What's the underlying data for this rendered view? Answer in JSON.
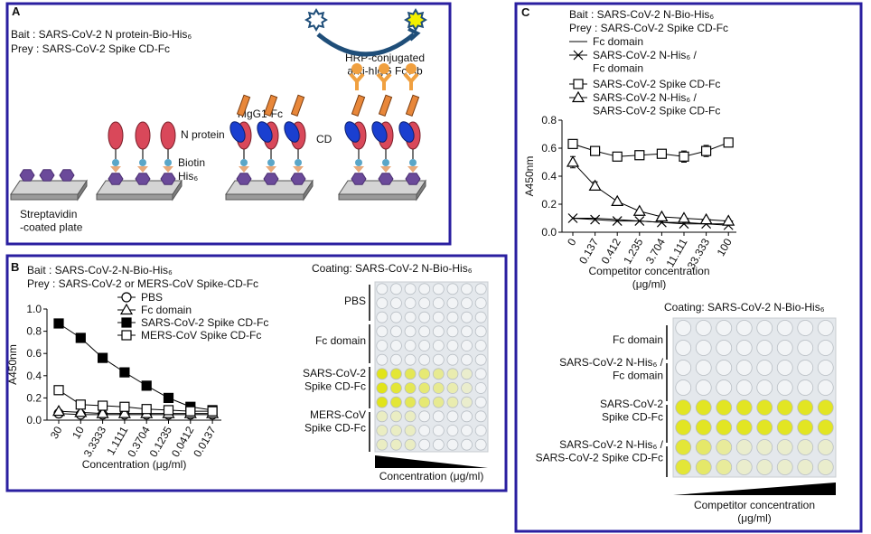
{
  "diagram": {
    "panel_label": "A",
    "bait": "Bait : SARS-CoV-2  N protein-Bio-His₆",
    "prey": "Prey : SARS-CoV-2  Spike CD-Fc",
    "labels": {
      "plate": "Streptavidin\n-coated plate",
      "n_protein": "N protein",
      "biotin": "Biotin",
      "his": "His₆",
      "fc": "hIgG1-Fc",
      "cd": "CD",
      "antibody": "HRP-conjugated\nanti-hIgG Fc Ab"
    }
  },
  "chart_data": [
    {
      "type": "line",
      "panel_label": "B",
      "title": "Bait : SARS-CoV-2-N-Bio-His₆",
      "subtitle": "Prey : SARS-CoV-2  or MERS-CoV Spike-CD-Fc",
      "y_label": "A450nm",
      "x_label": "Concentration (μg/ml)",
      "categories": [
        "30",
        "10",
        "3.3333",
        "1.1111",
        "0.3704",
        "0.1235",
        "0.0412",
        "0.0137"
      ],
      "ylim": [
        0,
        1
      ],
      "yticks": [
        {
          "value": 0,
          "label": "0.0"
        },
        0.2,
        0.4,
        0.6,
        0.8,
        {
          "value": 1,
          "label": "1.0"
        }
      ],
      "series": [
        {
          "name": "PBS",
          "color": "#000000",
          "marker": "circle-open",
          "values": [
            0.06,
            0.05,
            0.05,
            0.05,
            0.05,
            0.05,
            0.05,
            0.05
          ]
        },
        {
          "name": "Fc domain",
          "color": "#000000",
          "marker": "triangle-open",
          "values": [
            0.08,
            0.07,
            0.06,
            0.06,
            0.06,
            0.06,
            0.06,
            0.06
          ]
        },
        {
          "name": "SARS-CoV-2  Spike CD-Fc",
          "color": "#000000",
          "marker": "square-filled",
          "values": [
            0.87,
            0.74,
            0.56,
            0.43,
            0.31,
            0.2,
            0.12,
            0.09
          ]
        },
        {
          "name": "MERS-CoV  Spike CD-Fc",
          "color": "#000000",
          "marker": "square-open",
          "values": [
            0.27,
            0.14,
            0.13,
            0.12,
            0.1,
            0.09,
            0.08,
            0.08
          ]
        }
      ]
    },
    {
      "type": "line",
      "panel_label": "C",
      "title": "Bait : SARS-CoV-2  N-Bio-His₆",
      "subtitle": "Prey : SARS-CoV-2  Spike CD-Fc",
      "y_label": "A450nm",
      "x_label": "Competitor concentration\n(μg/ml)",
      "categories": [
        "0",
        "0.137",
        "0.412",
        "1.235",
        "3.704",
        "11.111",
        "33.333",
        "100"
      ],
      "ylim": [
        0,
        0.8
      ],
      "yticks": [
        {
          "value": 0,
          "label": "0.0"
        },
        0.2,
        0.4,
        0.6,
        0.8
      ],
      "series": [
        {
          "name": "Fc domain",
          "color": "#000000",
          "marker": "none",
          "values": [
            0.1,
            0.1,
            0.09,
            0.08,
            0.07,
            0.07,
            0.06,
            0.06
          ]
        },
        {
          "name": "SARS-CoV-2  N-His₆ /\nFc domain",
          "color": "#000000",
          "marker": "x",
          "values": [
            0.1,
            0.09,
            0.08,
            0.08,
            0.07,
            0.06,
            0.06,
            0.05
          ]
        },
        {
          "name": "SARS-CoV-2  Spike CD-Fc",
          "color": "#000000",
          "marker": "square-open",
          "values": [
            0.63,
            0.58,
            0.54,
            0.55,
            0.56,
            0.54,
            0.58,
            0.64
          ],
          "errors": [
            0.03,
            0.03,
            0.01,
            0.02,
            0.03,
            0.04,
            0.04,
            0.02
          ]
        },
        {
          "name": "SARS-CoV-2  N-His₆ /\nSARS-CoV-2  Spike CD-Fc",
          "color": "#000000",
          "marker": "triangle-open",
          "values": [
            0.5,
            0.33,
            0.22,
            0.15,
            0.11,
            0.1,
            0.09,
            0.08
          ],
          "errors": [
            0.04,
            0.03,
            0.01,
            0.01,
            0.01,
            0.01,
            0.01,
            0.01
          ]
        }
      ]
    }
  ],
  "plates": [
    {
      "coating": "Coating: SARS-CoV-2  N-Bio-His₆",
      "rows": [
        "PBS",
        "Fc domain",
        "SARS-CoV-2\nSpike CD-Fc",
        "MERS-CoV\nSpike CD-Fc"
      ],
      "gradient_label": "Concentration (μg/ml)"
    },
    {
      "coating": "Coating: SARS-CoV-2  N-Bio-His₆",
      "rows": [
        "Fc domain",
        "SARS-CoV-2  N-His₆ /\nFc domain",
        "SARS-CoV-2\nSpike CD-Fc",
        "SARS-CoV-2  N-His₆ /\nSARS-CoV-2  Spike CD-Fc"
      ],
      "gradient_label": "Competitor concentration\n(μg/ml)"
    }
  ]
}
